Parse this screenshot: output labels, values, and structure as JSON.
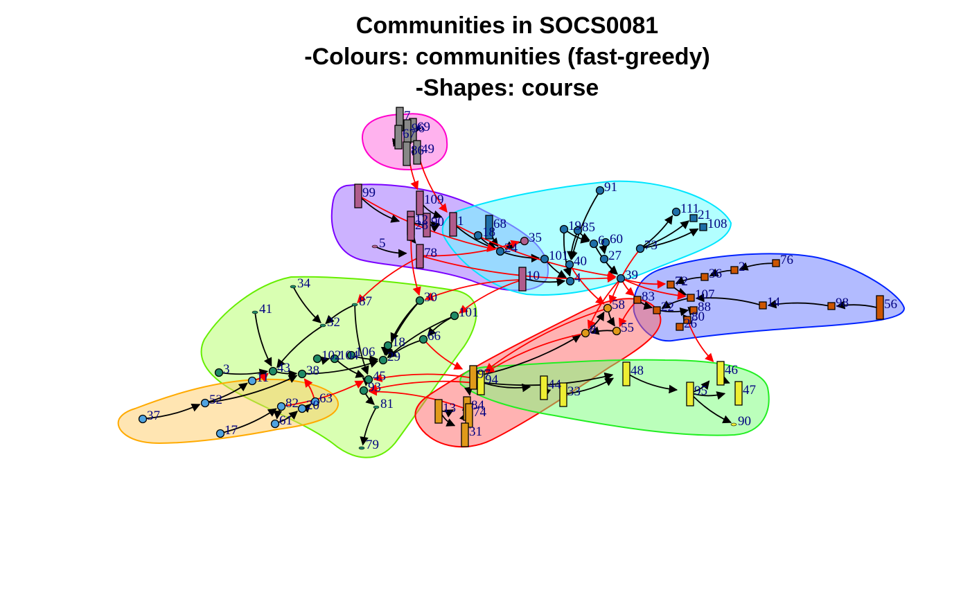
{
  "title_lines": [
    "Communities in SOCS0081",
    "-Colours: communities (fast-greedy)",
    "-Shapes: course"
  ],
  "communities": [
    {
      "id": "magenta",
      "fill": "#ff66dd",
      "stroke": "#ff00cc"
    },
    {
      "id": "purple",
      "fill": "#9966ff",
      "stroke": "#7a00ff"
    },
    {
      "id": "cyan",
      "fill": "#66ffff",
      "stroke": "#00e5ff"
    },
    {
      "id": "blue",
      "fill": "#6677ff",
      "stroke": "#0022ff"
    },
    {
      "id": "lime",
      "fill": "#b3ff66",
      "stroke": "#66ee00"
    },
    {
      "id": "orange",
      "fill": "#ffcc66",
      "stroke": "#ffaa00"
    },
    {
      "id": "red",
      "fill": "#ff6666",
      "stroke": "#ff0000"
    },
    {
      "id": "green",
      "fill": "#77ff77",
      "stroke": "#22ee22"
    }
  ],
  "node_colors": {
    "grey": "#888888",
    "mauve": "#b05c8c",
    "steel": "#1e6fa8",
    "rust": "#cc5500",
    "teal": "#1f8a66",
    "sky": "#4fa3e0",
    "amber": "#e09a1a",
    "yellow": "#eeee33"
  },
  "edge_colors": {
    "within": "#000000",
    "between": "#ff0000"
  },
  "nodes": [
    {
      "id": "7",
      "shape": "tall",
      "color": "grey"
    },
    {
      "id": "69",
      "shape": "tall",
      "color": "grey"
    },
    {
      "id": "96",
      "shape": "tall",
      "color": "grey"
    },
    {
      "id": "67",
      "shape": "tall",
      "color": "grey"
    },
    {
      "id": "86",
      "shape": "tall",
      "color": "grey"
    },
    {
      "id": "49",
      "shape": "tall",
      "color": "grey"
    },
    {
      "id": "99",
      "shape": "tall",
      "color": "mauve"
    },
    {
      "id": "109",
      "shape": "tall",
      "color": "mauve"
    },
    {
      "id": "12",
      "shape": "tall",
      "color": "mauve"
    },
    {
      "id": "90b",
      "label": "90",
      "shape": "tall",
      "color": "mauve"
    },
    {
      "id": "1",
      "shape": "tall",
      "color": "mauve"
    },
    {
      "id": "28",
      "shape": "tall",
      "color": "mauve"
    },
    {
      "id": "78",
      "shape": "tall",
      "color": "mauve"
    },
    {
      "id": "5",
      "shape": "dot",
      "color": "mauve"
    },
    {
      "id": "68",
      "shape": "tall",
      "color": "steel"
    },
    {
      "id": "18b",
      "label": "18",
      "shape": "circle",
      "color": "steel"
    },
    {
      "id": "35",
      "shape": "circle",
      "color": "mauve"
    },
    {
      "id": "24",
      "shape": "circle",
      "color": "steel"
    },
    {
      "id": "91",
      "shape": "circle",
      "color": "steel"
    },
    {
      "id": "19",
      "shape": "circle",
      "color": "steel"
    },
    {
      "id": "85",
      "shape": "circle",
      "color": "steel"
    },
    {
      "id": "6",
      "shape": "circle",
      "color": "steel"
    },
    {
      "id": "60",
      "shape": "circle",
      "color": "steel"
    },
    {
      "id": "27",
      "shape": "circle",
      "color": "steel"
    },
    {
      "id": "40",
      "shape": "circle",
      "color": "steel"
    },
    {
      "id": "73",
      "shape": "circle",
      "color": "steel"
    },
    {
      "id": "111",
      "shape": "circle",
      "color": "steel"
    },
    {
      "id": "21",
      "shape": "square",
      "color": "steel"
    },
    {
      "id": "108",
      "shape": "square",
      "color": "steel"
    },
    {
      "id": "10",
      "shape": "tall",
      "color": "mauve"
    },
    {
      "id": "101b",
      "label": "101",
      "shape": "circle",
      "color": "steel"
    },
    {
      "id": "4",
      "shape": "circle",
      "color": "steel"
    },
    {
      "id": "39",
      "shape": "circle",
      "color": "steel"
    },
    {
      "id": "76",
      "shape": "square",
      "color": "rust"
    },
    {
      "id": "2",
      "shape": "square",
      "color": "rust"
    },
    {
      "id": "36",
      "shape": "square",
      "color": "rust"
    },
    {
      "id": "72",
      "shape": "square",
      "color": "rust"
    },
    {
      "id": "107",
      "shape": "square",
      "color": "rust"
    },
    {
      "id": "83",
      "shape": "square",
      "color": "rust"
    },
    {
      "id": "22",
      "shape": "square",
      "color": "rust"
    },
    {
      "id": "88",
      "shape": "square",
      "color": "rust"
    },
    {
      "id": "80",
      "shape": "square",
      "color": "rust"
    },
    {
      "id": "26",
      "shape": "square",
      "color": "rust"
    },
    {
      "id": "14",
      "shape": "square",
      "color": "rust"
    },
    {
      "id": "98",
      "shape": "square",
      "color": "rust"
    },
    {
      "id": "56",
      "shape": "tall",
      "color": "rust"
    },
    {
      "id": "34",
      "shape": "dot",
      "color": "teal"
    },
    {
      "id": "87",
      "shape": "dot",
      "color": "teal"
    },
    {
      "id": "41",
      "shape": "dot",
      "color": "teal"
    },
    {
      "id": "32",
      "shape": "dot",
      "color": "teal"
    },
    {
      "id": "30",
      "shape": "circle",
      "color": "teal"
    },
    {
      "id": "101",
      "shape": "circle",
      "color": "teal"
    },
    {
      "id": "18",
      "shape": "circle",
      "color": "teal"
    },
    {
      "id": "66",
      "shape": "circle",
      "color": "teal"
    },
    {
      "id": "106",
      "shape": "circle",
      "color": "teal"
    },
    {
      "id": "102",
      "shape": "circle",
      "color": "teal"
    },
    {
      "id": "104",
      "shape": "circle",
      "color": "teal"
    },
    {
      "id": "29",
      "shape": "circle",
      "color": "teal"
    },
    {
      "id": "3",
      "shape": "circle",
      "color": "teal"
    },
    {
      "id": "43",
      "shape": "circle",
      "color": "teal"
    },
    {
      "id": "38",
      "shape": "circle",
      "color": "teal"
    },
    {
      "id": "45",
      "shape": "circle",
      "color": "teal"
    },
    {
      "id": "93",
      "shape": "circle",
      "color": "teal"
    },
    {
      "id": "81",
      "shape": "dot",
      "color": "teal"
    },
    {
      "id": "79",
      "shape": "dot",
      "color": "teal"
    },
    {
      "id": "11",
      "shape": "circle",
      "color": "sky"
    },
    {
      "id": "52",
      "shape": "circle",
      "color": "sky"
    },
    {
      "id": "37",
      "shape": "circle",
      "color": "sky"
    },
    {
      "id": "17",
      "shape": "circle",
      "color": "sky"
    },
    {
      "id": "82",
      "shape": "circle",
      "color": "sky"
    },
    {
      "id": "61",
      "shape": "circle",
      "color": "sky"
    },
    {
      "id": "20",
      "shape": "circle",
      "color": "sky"
    },
    {
      "id": "63",
      "shape": "circle",
      "color": "sky"
    },
    {
      "id": "58",
      "shape": "circle",
      "color": "amber"
    },
    {
      "id": "55",
      "shape": "circle",
      "color": "amber"
    },
    {
      "id": "8",
      "shape": "circle",
      "color": "amber"
    },
    {
      "id": "97",
      "shape": "tall",
      "color": "amber"
    },
    {
      "id": "13",
      "shape": "tall",
      "color": "amber"
    },
    {
      "id": "84",
      "shape": "tall",
      "color": "amber"
    },
    {
      "id": "74",
      "shape": "tall",
      "color": "amber"
    },
    {
      "id": "31",
      "shape": "tall",
      "color": "amber"
    },
    {
      "id": "94",
      "shape": "tall",
      "color": "yellow"
    },
    {
      "id": "44",
      "shape": "tall",
      "color": "yellow"
    },
    {
      "id": "33",
      "shape": "tall",
      "color": "yellow"
    },
    {
      "id": "48",
      "shape": "tall",
      "color": "yellow"
    },
    {
      "id": "46",
      "shape": "tall",
      "color": "yellow"
    },
    {
      "id": "95",
      "shape": "tall",
      "color": "yellow"
    },
    {
      "id": "47",
      "shape": "tall",
      "color": "yellow"
    },
    {
      "id": "90",
      "shape": "dot",
      "color": "yellow"
    }
  ],
  "edges_within": [
    [
      "69",
      "96"
    ],
    [
      "67",
      "86"
    ],
    [
      "49",
      "86"
    ],
    [
      "99",
      "28"
    ],
    [
      "109",
      "1"
    ],
    [
      "12",
      "1"
    ],
    [
      "90b",
      "1"
    ],
    [
      "5",
      "78"
    ],
    [
      "28",
      "78"
    ],
    [
      "1",
      "24"
    ],
    [
      "68",
      "24"
    ],
    [
      "18b",
      "24"
    ],
    [
      "35",
      "24"
    ],
    [
      "24",
      "101b"
    ],
    [
      "91",
      "40"
    ],
    [
      "19",
      "6"
    ],
    [
      "85",
      "6"
    ],
    [
      "60",
      "27"
    ],
    [
      "73",
      "111"
    ],
    [
      "73",
      "21"
    ],
    [
      "73",
      "108"
    ],
    [
      "27",
      "39"
    ],
    [
      "40",
      "4"
    ],
    [
      "101b",
      "4"
    ],
    [
      "10",
      "4"
    ],
    [
      "6",
      "39"
    ],
    [
      "19",
      "4"
    ],
    [
      "85",
      "40"
    ],
    [
      "76",
      "2"
    ],
    [
      "2",
      "36"
    ],
    [
      "36",
      "72"
    ],
    [
      "72",
      "107"
    ],
    [
      "107",
      "22"
    ],
    [
      "83",
      "22"
    ],
    [
      "22",
      "88"
    ],
    [
      "88",
      "80"
    ],
    [
      "80",
      "26"
    ],
    [
      "14",
      "107"
    ],
    [
      "98",
      "14"
    ],
    [
      "56",
      "98"
    ],
    [
      "34",
      "32"
    ],
    [
      "87",
      "32"
    ],
    [
      "41",
      "43"
    ],
    [
      "32",
      "43"
    ],
    [
      "30",
      "18"
    ],
    [
      "101",
      "66"
    ],
    [
      "18",
      "29"
    ],
    [
      "66",
      "29"
    ],
    [
      "106",
      "29"
    ],
    [
      "102",
      "104"
    ],
    [
      "104",
      "45"
    ],
    [
      "3",
      "43"
    ],
    [
      "43",
      "38"
    ],
    [
      "38",
      "29"
    ],
    [
      "45",
      "93"
    ],
    [
      "93",
      "81"
    ],
    [
      "81",
      "79"
    ],
    [
      "87",
      "45"
    ],
    [
      "30",
      "29"
    ],
    [
      "101",
      "29"
    ],
    [
      "52",
      "11"
    ],
    [
      "37",
      "52"
    ],
    [
      "17",
      "82"
    ],
    [
      "82",
      "61"
    ],
    [
      "61",
      "20"
    ],
    [
      "20",
      "63"
    ],
    [
      "11",
      "43"
    ],
    [
      "52",
      "38"
    ],
    [
      "58",
      "55"
    ],
    [
      "8",
      "58"
    ],
    [
      "55",
      "8"
    ],
    [
      "97",
      "8"
    ],
    [
      "13",
      "84"
    ],
    [
      "84",
      "74"
    ],
    [
      "74",
      "31"
    ],
    [
      "13",
      "31"
    ],
    [
      "97",
      "84"
    ],
    [
      "94",
      "44"
    ],
    [
      "44",
      "33"
    ],
    [
      "33",
      "48"
    ],
    [
      "48",
      "95"
    ],
    [
      "95",
      "46"
    ],
    [
      "95",
      "47"
    ],
    [
      "46",
      "47"
    ],
    [
      "95",
      "90"
    ],
    [
      "94",
      "48"
    ]
  ],
  "edges_between": [
    [
      "96",
      "109"
    ],
    [
      "49",
      "1"
    ],
    [
      "99",
      "24"
    ],
    [
      "78",
      "35"
    ],
    [
      "28",
      "30"
    ],
    [
      "78",
      "87"
    ],
    [
      "10",
      "101"
    ],
    [
      "10",
      "30"
    ],
    [
      "39",
      "107"
    ],
    [
      "39",
      "72"
    ],
    [
      "39",
      "8"
    ],
    [
      "39",
      "83"
    ],
    [
      "40",
      "58"
    ],
    [
      "73",
      "58"
    ],
    [
      "80",
      "46"
    ],
    [
      "58",
      "97"
    ],
    [
      "8",
      "97"
    ],
    [
      "97",
      "45"
    ],
    [
      "94",
      "93"
    ],
    [
      "84",
      "93"
    ],
    [
      "63",
      "38"
    ],
    [
      "82",
      "45"
    ],
    [
      "11",
      "43"
    ],
    [
      "66",
      "97"
    ],
    [
      "83",
      "55"
    ],
    [
      "1",
      "39"
    ],
    [
      "78",
      "39"
    ]
  ]
}
